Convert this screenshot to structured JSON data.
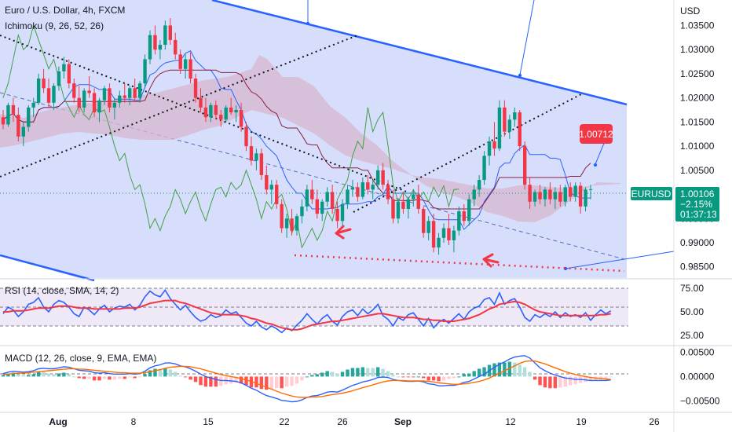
{
  "header": {
    "symbol_title": "Euro / U.S. Dollar, 4h, FXCM",
    "ichimoku_label": "Ichimoku (9, 26, 52, 26)",
    "rsi_label": "RSI (14, close, SMA, 14, 2)",
    "macd_label": "MACD (12, 26, close, 9, EMA, EMA)"
  },
  "price_axis": {
    "currency": "USD",
    "ticks": [
      "1.03500",
      "1.03000",
      "1.02500",
      "1.02000",
      "1.01500",
      "1.01000",
      "1.00500",
      "1.00000",
      "0.99500",
      "0.99000",
      "0.98500"
    ],
    "values": [
      1.035,
      1.03,
      1.025,
      1.02,
      1.015,
      1.01,
      1.005,
      1.0,
      0.995,
      0.99,
      0.985
    ]
  },
  "rsi_axis": {
    "ticks": [
      "75.00",
      "50.00",
      "25.00"
    ],
    "values": [
      75,
      50,
      25
    ]
  },
  "macd_axis": {
    "ticks": [
      "0.00500",
      "0.00000",
      "−0.00500"
    ],
    "values": [
      0.005,
      0,
      -0.005
    ]
  },
  "time_axis": {
    "labels": [
      "Aug",
      "8",
      "15",
      "22",
      "26",
      "Sep",
      "12",
      "19",
      "26"
    ]
  },
  "badges": {
    "symbol": "EURUSD",
    "last_price": "1.00106",
    "change_pct": "−2.15%",
    "countdown": "01:37:13",
    "annotation_price": "1.00712"
  },
  "colors": {
    "bull": "#089981",
    "bear": "#f23645",
    "channel_fill": "#cfd8fb",
    "channel_line": "#2962ff",
    "rsi_line": "#2962ff",
    "rsi_ma": "#f23645",
    "macd_line": "#2962ff",
    "signal_line": "#ff6d00",
    "cloud_fill": "#d7b7cf",
    "chikou": "#43a047",
    "kijun": "#8e1e3c",
    "badge_green": "#089981",
    "badge_red": "#f23645"
  },
  "chart_data": {
    "type": "candlestick",
    "instrument": "EURUSD",
    "timeframe": "4h",
    "ylim": [
      0.983,
      1.038
    ],
    "rsi_ylim": [
      15,
      85
    ],
    "macd_ylim": [
      -0.0072,
      0.0062
    ],
    "candles": [
      [
        1.016,
        1.0175,
        1.0135,
        1.0145
      ],
      [
        1.0145,
        1.019,
        1.014,
        1.0185
      ],
      [
        1.0185,
        1.02,
        1.015,
        1.0165
      ],
      [
        1.0165,
        1.018,
        1.011,
        1.012
      ],
      [
        1.012,
        1.015,
        1.01,
        1.014
      ],
      [
        1.014,
        1.0185,
        1.013,
        1.018
      ],
      [
        1.018,
        1.02,
        1.016,
        1.019
      ],
      [
        1.019,
        1.025,
        1.0185,
        1.024
      ],
      [
        1.024,
        1.026,
        1.021,
        1.022
      ],
      [
        1.022,
        1.024,
        1.018,
        1.019
      ],
      [
        1.019,
        1.023,
        1.0175,
        1.0225
      ],
      [
        1.0225,
        1.0265,
        1.0215,
        1.0255
      ],
      [
        1.0255,
        1.0285,
        1.024,
        1.027
      ],
      [
        1.027,
        1.028,
        1.022,
        1.023
      ],
      [
        1.023,
        1.024,
        1.019,
        1.02
      ],
      [
        1.02,
        1.0225,
        1.017,
        1.018
      ],
      [
        1.018,
        1.022,
        1.017,
        1.0215
      ],
      [
        1.0215,
        1.0245,
        1.02,
        1.021
      ],
      [
        1.021,
        1.022,
        1.016,
        1.017
      ],
      [
        1.017,
        1.02,
        1.015,
        1.0195
      ],
      [
        1.0195,
        1.0225,
        1.0185,
        1.022
      ],
      [
        1.022,
        1.023,
        1.017,
        1.018
      ],
      [
        1.018,
        1.02,
        1.0155,
        1.019
      ],
      [
        1.019,
        1.0215,
        1.018,
        1.0205
      ],
      [
        1.0205,
        1.023,
        1.019,
        1.02
      ],
      [
        1.02,
        1.0225,
        1.0185,
        1.022
      ],
      [
        1.022,
        1.024,
        1.0195,
        1.02
      ],
      [
        1.02,
        1.0235,
        1.019,
        1.023
      ],
      [
        1.023,
        1.029,
        1.022,
        1.028
      ],
      [
        1.028,
        1.034,
        1.027,
        1.033
      ],
      [
        1.033,
        1.035,
        1.029,
        1.03
      ],
      [
        1.03,
        1.032,
        1.028,
        1.031
      ],
      [
        1.031,
        1.036,
        1.03,
        1.035
      ],
      [
        1.035,
        1.0365,
        1.031,
        1.032
      ],
      [
        1.032,
        1.0335,
        1.028,
        1.029
      ],
      [
        1.029,
        1.03,
        1.025,
        1.026
      ],
      [
        1.026,
        1.029,
        1.024,
        1.028
      ],
      [
        1.028,
        1.0295,
        1.023,
        1.024
      ],
      [
        1.024,
        1.025,
        1.019,
        1.02
      ],
      [
        1.02,
        1.022,
        1.017,
        1.018
      ],
      [
        1.018,
        1.02,
        1.015,
        1.016
      ],
      [
        1.016,
        1.019,
        1.015,
        1.0185
      ],
      [
        1.0185,
        1.0195,
        1.0155,
        1.0165
      ],
      [
        1.0165,
        1.0175,
        1.014,
        1.0155
      ],
      [
        1.0155,
        1.0185,
        1.015,
        1.018
      ],
      [
        1.018,
        1.02,
        1.0165,
        1.017
      ],
      [
        1.017,
        1.0185,
        1.015,
        1.0175
      ],
      [
        1.0175,
        1.019,
        1.013,
        1.014
      ],
      [
        1.014,
        1.015,
        1.009,
        1.01
      ],
      [
        1.01,
        1.012,
        1.006,
        1.007
      ],
      [
        1.007,
        1.0095,
        1.005,
        1.0085
      ],
      [
        1.0085,
        1.0095,
        1.003,
        1.004
      ],
      [
        1.004,
        1.006,
        1.0,
        1.001
      ],
      [
        1.001,
        1.003,
        0.998,
        1.002
      ],
      [
        1.002,
        1.003,
        0.997,
        0.998
      ],
      [
        0.998,
        0.999,
        0.992,
        0.993
      ],
      [
        0.993,
        0.996,
        0.991,
        0.995
      ],
      [
        0.995,
        0.997,
        0.9915,
        0.9925
      ],
      [
        0.9925,
        0.996,
        0.9915,
        0.9955
      ],
      [
        0.9955,
        0.999,
        0.994,
        0.9975
      ],
      [
        0.9975,
        1.002,
        0.9965,
        1.001
      ],
      [
        1.001,
        1.003,
        0.998,
        0.999
      ],
      [
        0.999,
        1.001,
        0.995,
        0.996
      ],
      [
        0.996,
        0.999,
        0.9945,
        0.9985
      ],
      [
        0.9985,
        1.0015,
        0.9975,
        1.0005
      ],
      [
        1.0005,
        1.002,
        0.996,
        0.997
      ],
      [
        0.997,
        0.9985,
        0.993,
        0.9945
      ],
      [
        0.9945,
        0.999,
        0.9935,
        0.998
      ],
      [
        0.998,
        1.002,
        0.997,
        1.001
      ],
      [
        1.001,
        1.003,
        0.9995,
        1.0015
      ],
      [
        1.0015,
        1.0025,
        0.9985,
        0.9995
      ],
      [
        0.9995,
        1.0035,
        0.999,
        1.0025
      ],
      [
        1.0025,
        1.004,
        1.0,
        1.001
      ],
      [
        1.001,
        1.003,
        0.999,
        1.002
      ],
      [
        1.002,
        1.006,
        1.001,
        1.005
      ],
      [
        1.005,
        1.0065,
        1.001,
        1.002
      ],
      [
        1.002,
        1.003,
        0.998,
        0.999
      ],
      [
        0.999,
        1.001,
        0.994,
        0.995
      ],
      [
        0.995,
        0.999,
        0.994,
        0.9985
      ],
      [
        0.9985,
        1.0005,
        0.996,
        0.997
      ],
      [
        0.997,
        0.9995,
        0.995,
        0.999
      ],
      [
        0.999,
        1.001,
        0.9975,
        1.0
      ],
      [
        1.0,
        1.002,
        0.996,
        0.997
      ],
      [
        0.997,
        0.9975,
        0.991,
        0.992
      ],
      [
        0.992,
        0.9955,
        0.9905,
        0.9945
      ],
      [
        0.9945,
        0.996,
        0.988,
        0.989
      ],
      [
        0.989,
        0.992,
        0.9875,
        0.991
      ],
      [
        0.991,
        0.994,
        0.99,
        0.993
      ],
      [
        0.993,
        0.996,
        0.9895,
        0.9905
      ],
      [
        0.9905,
        0.9935,
        0.988,
        0.9925
      ],
      [
        0.9925,
        0.9975,
        0.9915,
        0.9965
      ],
      [
        0.9965,
        0.998,
        0.9935,
        0.9945
      ],
      [
        0.9945,
        1.0,
        0.9935,
        0.999
      ],
      [
        0.999,
        1.002,
        0.9975,
        1.001
      ],
      [
        1.001,
        1.004,
        0.9995,
        1.003
      ],
      [
        1.003,
        1.009,
        1.002,
        1.008
      ],
      [
        1.008,
        1.012,
        1.006,
        1.011
      ],
      [
        1.011,
        1.015,
        1.008,
        1.0095
      ],
      [
        1.0095,
        1.0195,
        1.009,
        1.018
      ],
      [
        1.018,
        1.0195,
        1.012,
        1.013
      ],
      [
        1.013,
        1.0165,
        1.0115,
        1.0155
      ],
      [
        1.0155,
        1.018,
        1.014,
        1.017
      ],
      [
        1.017,
        1.0175,
        1.009,
        1.01
      ],
      [
        1.01,
        1.011,
        1.001,
        1.002
      ],
      [
        1.002,
        1.0035,
        0.997,
        0.9985
      ],
      [
        0.9985,
        1.001,
        0.9975,
        1.0005
      ],
      [
        1.0005,
        1.002,
        0.998,
        0.999
      ],
      [
        0.999,
        1.0015,
        0.9975,
        1.001
      ],
      [
        1.001,
        1.0025,
        0.998,
        0.999
      ],
      [
        0.999,
        1.0015,
        0.997,
        1.0005
      ],
      [
        1.0005,
        1.002,
        0.9975,
        0.9985
      ],
      [
        0.9985,
        1.002,
        0.9975,
        1.0015
      ],
      [
        1.0015,
        1.0025,
        0.9985,
        0.9995
      ],
      [
        0.9995,
        1.0025,
        0.9985,
        1.0018
      ],
      [
        1.0018,
        1.0025,
        0.996,
        0.9975
      ],
      [
        0.9975,
        1.0015,
        0.9965,
        1.001
      ],
      [
        1.001,
        1.002,
        0.999,
        1.0011
      ]
    ],
    "rsi": [
      48,
      55,
      52,
      45,
      50,
      58,
      60,
      65,
      55,
      50,
      58,
      62,
      60,
      55,
      48,
      45,
      55,
      52,
      47,
      53,
      57,
      50,
      54,
      56,
      55,
      58,
      52,
      57,
      66,
      72,
      68,
      66,
      73,
      64,
      58,
      52,
      57,
      50,
      44,
      40,
      42,
      47,
      44,
      46,
      52,
      48,
      50,
      44,
      38,
      35,
      40,
      34,
      31,
      35,
      32,
      28,
      33,
      30,
      36,
      41,
      48,
      42,
      37,
      43,
      47,
      40,
      36,
      45,
      50,
      52,
      46,
      53,
      48,
      52,
      58,
      46,
      42,
      35,
      44,
      41,
      47,
      49,
      42,
      35,
      43,
      33,
      39,
      42,
      38,
      43,
      48,
      42,
      50,
      54,
      56,
      63,
      65,
      58,
      70,
      58,
      62,
      64,
      55,
      44,
      40,
      47,
      44,
      48,
      45,
      50,
      44,
      49,
      45,
      47,
      44,
      49,
      41,
      47,
      52,
      48,
      51
    ],
    "rsi_ma": [
      50,
      50,
      51,
      51,
      51,
      52,
      53,
      54,
      54,
      54,
      55,
      56,
      56,
      56,
      55,
      54,
      54,
      54,
      53,
      53,
      53,
      53,
      53,
      53,
      54,
      54,
      54,
      55,
      57,
      59,
      60,
      61,
      62,
      62,
      62,
      60,
      59,
      57,
      55,
      53,
      51,
      49,
      48,
      47,
      47,
      47,
      47,
      46,
      45,
      43,
      42,
      40,
      38,
      37,
      35,
      33,
      32,
      31,
      31,
      32,
      34,
      36,
      37,
      38,
      39,
      40,
      40,
      41,
      42,
      43,
      44,
      45,
      46,
      47,
      48,
      48,
      47,
      46,
      45,
      44,
      44,
      44,
      43,
      42,
      42,
      41,
      41,
      40,
      40,
      40,
      41,
      42,
      43,
      45,
      47,
      50,
      53,
      55,
      58,
      59,
      60,
      61,
      60,
      58,
      55,
      52,
      50,
      49,
      48,
      47,
      46,
      46,
      46,
      46,
      46,
      46,
      46,
      46,
      47,
      47,
      48
    ],
    "macd": [
      0.0006,
      0.0009,
      0.0011,
      0.001,
      0.0009,
      0.001,
      0.0012,
      0.0016,
      0.0017,
      0.0016,
      0.0016,
      0.0018,
      0.002,
      0.0019,
      0.0016,
      0.0013,
      0.0012,
      0.0011,
      0.0008,
      0.0007,
      0.0008,
      0.0006,
      0.0005,
      0.0005,
      0.0005,
      0.0006,
      0.0005,
      0.0006,
      0.0011,
      0.0018,
      0.0022,
      0.0024,
      0.0028,
      0.0028,
      0.0026,
      0.0022,
      0.002,
      0.0016,
      0.0011,
      0.0005,
      0.0,
      -0.0003,
      -0.0006,
      -0.0008,
      -0.0008,
      -0.0009,
      -0.001,
      -0.0013,
      -0.0018,
      -0.0024,
      -0.0028,
      -0.0034,
      -0.0039,
      -0.0042,
      -0.0045,
      -0.0049,
      -0.005,
      -0.0052,
      -0.0051,
      -0.0048,
      -0.0043,
      -0.004,
      -0.0039,
      -0.0036,
      -0.0032,
      -0.0031,
      -0.0032,
      -0.0028,
      -0.0023,
      -0.0018,
      -0.0015,
      -0.0011,
      -0.0009,
      -0.0006,
      -0.0002,
      -0.0001,
      -0.0002,
      -0.0006,
      -0.0008,
      -0.0009,
      -0.001,
      -0.001,
      -0.0009,
      -0.0011,
      -0.0015,
      -0.0016,
      -0.0019,
      -0.0019,
      -0.0018,
      -0.0018,
      -0.0016,
      -0.0012,
      -0.001,
      -0.0005,
      0.0,
      0.0005,
      0.0012,
      0.0019,
      0.0025,
      0.003,
      0.0036,
      0.004,
      0.0042,
      0.0043,
      0.0038,
      0.0028,
      0.0018,
      0.0012,
      0.0007,
      0.0003,
      0.0,
      -0.0003,
      -0.0004,
      -0.0006,
      -0.0006,
      -0.0007,
      -0.0008,
      -0.0008,
      -0.0008,
      -0.0008,
      -0.0007
    ],
    "signal": [
      0.0004,
      0.0005,
      0.0006,
      0.0007,
      0.0007,
      0.0008,
      0.0009,
      0.001,
      0.0011,
      0.0012,
      0.0013,
      0.0014,
      0.0015,
      0.0016,
      0.0016,
      0.0015,
      0.0015,
      0.0014,
      0.0013,
      0.0012,
      0.0011,
      0.001,
      0.0009,
      0.0008,
      0.0008,
      0.0007,
      0.0007,
      0.0007,
      0.0008,
      0.001,
      0.0012,
      0.0014,
      0.0017,
      0.0019,
      0.002,
      0.0021,
      0.0021,
      0.002,
      0.0018,
      0.0016,
      0.0013,
      0.001,
      0.0007,
      0.0004,
      0.0002,
      0.0,
      -0.0002,
      -0.0004,
      -0.0007,
      -0.001,
      -0.0014,
      -0.0018,
      -0.0022,
      -0.0026,
      -0.003,
      -0.0034,
      -0.0037,
      -0.004,
      -0.0042,
      -0.0043,
      -0.0043,
      -0.0042,
      -0.0042,
      -0.0041,
      -0.0039,
      -0.0037,
      -0.0036,
      -0.0034,
      -0.0032,
      -0.0029,
      -0.0026,
      -0.0023,
      -0.002,
      -0.0017,
      -0.0014,
      -0.0011,
      -0.0009,
      -0.0008,
      -0.0008,
      -0.0008,
      -0.0009,
      -0.0009,
      -0.0009,
      -0.0009,
      -0.001,
      -0.0011,
      -0.0013,
      -0.0014,
      -0.0015,
      -0.0016,
      -0.0016,
      -0.0015,
      -0.0014,
      -0.0012,
      -0.001,
      -0.0007,
      -0.0003,
      0.0002,
      0.0007,
      0.0012,
      0.0017,
      0.0022,
      0.0027,
      0.0031,
      0.0032,
      0.0032,
      0.0029,
      0.0026,
      0.0022,
      0.0018,
      0.0014,
      0.001,
      0.0007,
      0.0004,
      0.0002,
      0.0,
      -0.0002,
      -0.0003,
      -0.0004,
      -0.0005,
      -0.0006
    ]
  }
}
